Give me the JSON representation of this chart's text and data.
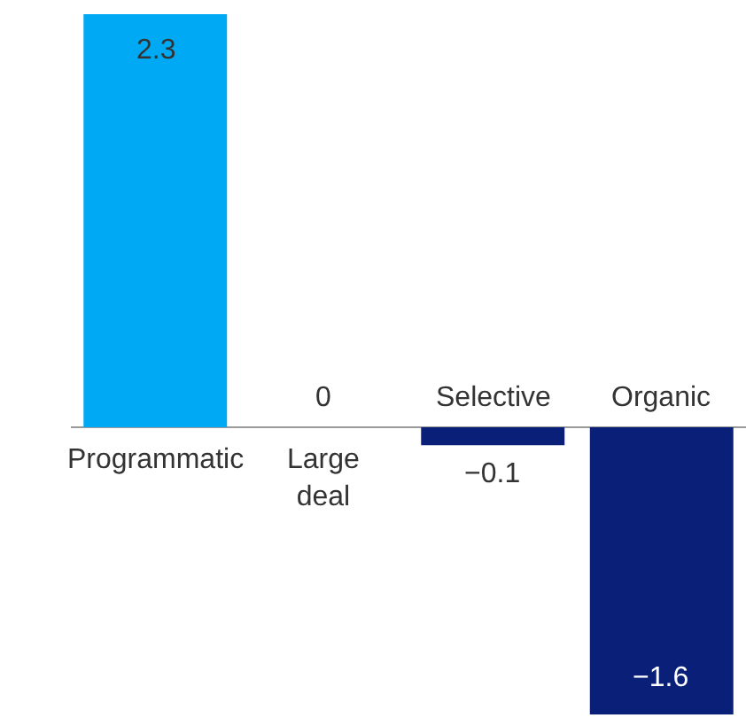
{
  "chart_data": {
    "type": "bar",
    "categories": [
      "Programmatic",
      "Large deal",
      "Selective",
      "Organic"
    ],
    "values": [
      2.3,
      0,
      -0.1,
      -1.6
    ],
    "colors": [
      "#00a9f4",
      "#00a9f4",
      "#0a1f78",
      "#0a1f78"
    ],
    "value_labels": [
      "2.3",
      "0",
      "−0.1",
      "−1.6"
    ],
    "ylim": [
      -1.6,
      2.3
    ]
  }
}
